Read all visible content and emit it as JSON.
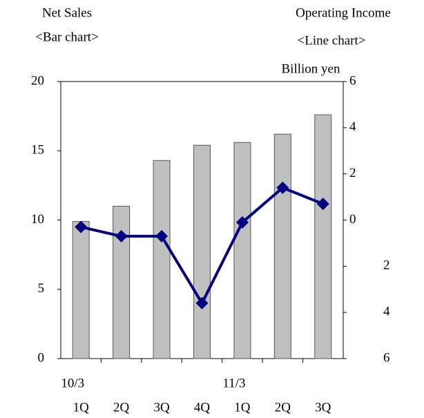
{
  "chart_data": {
    "type": "bar",
    "categories": [
      "1Q",
      "2Q",
      "3Q",
      "4Q",
      "1Q",
      "2Q",
      "3Q"
    ],
    "periods": [
      "10/3",
      null,
      null,
      null,
      "11/3",
      null,
      null
    ],
    "series": [
      {
        "name": "Net Sales",
        "chart_label": "<Bar chart>",
        "type": "bar",
        "color": "#c0c0c0",
        "values": [
          9.9,
          11.0,
          14.3,
          15.4,
          15.6,
          16.2,
          17.6
        ]
      },
      {
        "name": "Operating Income",
        "chart_label": "<Line chart>",
        "type": "line",
        "axis": "y2",
        "color": "#000080",
        "values": [
          -0.3,
          -0.7,
          -0.7,
          -3.6,
          -0.1,
          1.4,
          0.7
        ]
      }
    ],
    "y2_unit": "Billion yen",
    "ylim": [
      0,
      20
    ],
    "yticks": [
      0,
      5,
      10,
      15,
      20
    ],
    "y2lim": [
      -6,
      6
    ],
    "y2ticks": [
      {
        "value": -6,
        "label": "6"
      },
      {
        "value": -4,
        "label": "4"
      },
      {
        "value": -2,
        "label": "2"
      },
      0,
      2,
      4,
      6
    ]
  }
}
